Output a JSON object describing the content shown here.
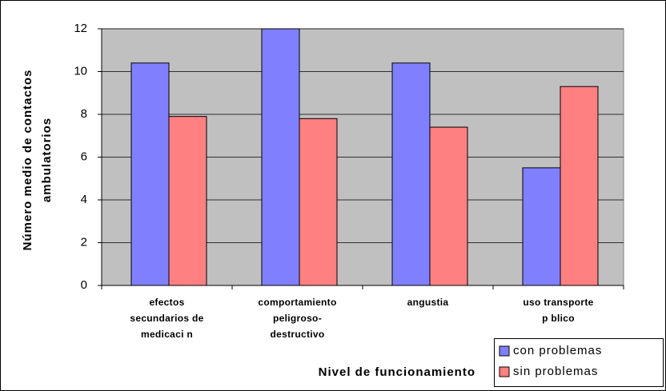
{
  "chart_data": {
    "type": "bar",
    "ylabel": [
      "Número medio de contactos",
      "ambulatorios"
    ],
    "xlabel": "Nivel de funcionamiento",
    "categories": [
      [
        "efectos",
        "secundarios de",
        "medicaci n"
      ],
      [
        "comportamiento",
        "peligroso-",
        "destructivo"
      ],
      [
        "angustia"
      ],
      [
        "uso transporte",
        "p blico"
      ]
    ],
    "series": [
      {
        "name": "con problemas",
        "color": "#8080ff",
        "values": [
          10.4,
          12,
          10.4,
          5.5
        ]
      },
      {
        "name": "sin problemas",
        "color": "#ff8080",
        "values": [
          7.9,
          7.8,
          7.4,
          9.3
        ]
      }
    ],
    "ylim": [
      0,
      12
    ],
    "yticks": [
      0,
      2,
      4,
      6,
      8,
      10,
      12
    ],
    "grid": true,
    "legend": "bottom-right"
  }
}
